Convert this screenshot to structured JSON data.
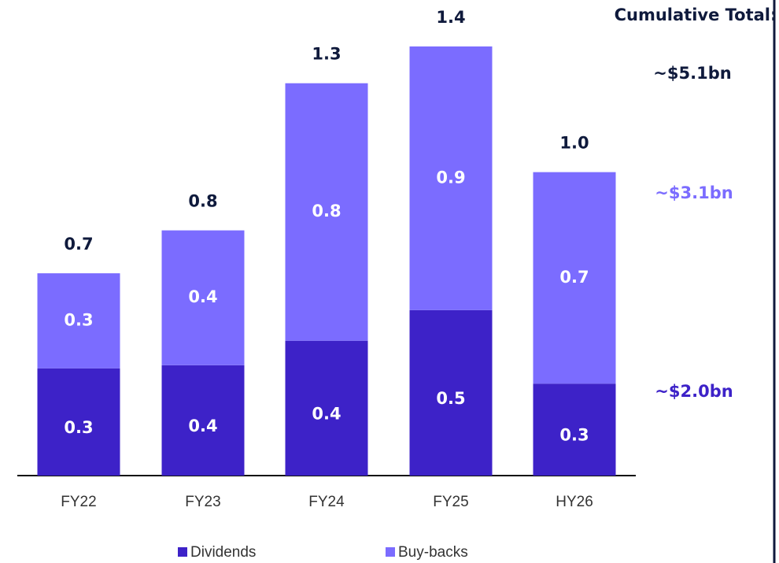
{
  "chart_data": {
    "type": "stacked-bar",
    "categories": [
      "FY22",
      "FY23",
      "FY24",
      "FY25",
      "HY26"
    ],
    "series": [
      {
        "name": "Dividends",
        "color": "#3d22c8",
        "values": [
          0.35,
          0.36,
          0.44,
          0.54,
          0.3
        ],
        "value_labels": [
          "0.3",
          "0.4",
          "0.4",
          "0.5",
          "0.3"
        ]
      },
      {
        "name": "Buy-backs",
        "color": "#7b6cff",
        "values": [
          0.31,
          0.44,
          0.84,
          0.86,
          0.69
        ],
        "value_labels": [
          "0.3",
          "0.4",
          "0.8",
          "0.9",
          "0.7"
        ]
      }
    ],
    "totals": [
      0.66,
      0.8,
      1.28,
      1.4,
      0.99
    ],
    "total_labels": [
      "0.7",
      "0.8",
      "1.3",
      "1.4",
      "1.0"
    ],
    "annotations": {
      "cumulative_title": "Cumulative Total:",
      "cumulative_total": "~$5.1bn",
      "buybacks_total": "~$3.1bn",
      "dividends_total": "~$2.0bn"
    }
  }
}
